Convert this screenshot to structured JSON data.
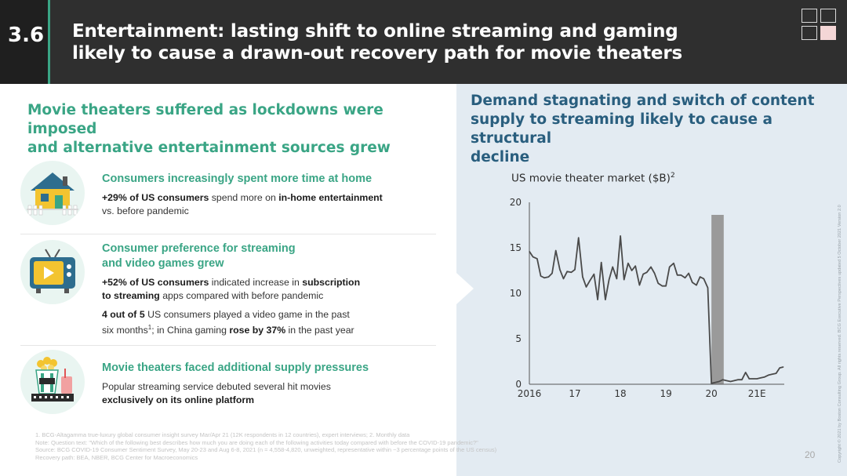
{
  "header": {
    "section_number": "3.6",
    "title_line1": "Entertainment: lasting shift to online streaming and gaming",
    "title_line2": "likely to cause a drawn-out recovery path for movie theaters"
  },
  "left": {
    "heading_line1": "Movie theaters suffered as lockdowns were imposed",
    "heading_line2": "and alternative entertainment sources grew",
    "items": [
      {
        "icon": "house-icon",
        "title_line1": "Consumers increasingly spent more time at home",
        "p1_a": "+29% of US consumers",
        "p1_b": " spend more on ",
        "p1_c": "in-home entertainment",
        "p1_d": "vs. before pandemic"
      },
      {
        "icon": "television-icon",
        "title_line1": "Consumer preference for streaming",
        "title_line2": "and video games grew",
        "p1_a": "+52% of US consumers",
        "p1_b": " indicated increase in ",
        "p1_c": "subscription",
        "p1_d": "to streaming",
        "p1_e": " apps compared with before pandemic",
        "p2_a": "4 out of 5",
        "p2_b": " US consumers played a video game in the past",
        "p2_c": "six months",
        "p2_sup": "1",
        "p2_d": "; in China gaming ",
        "p2_e": "rose by 37%",
        "p2_f": " in the past year"
      },
      {
        "icon": "popcorn-icon",
        "title_line1": "Movie theaters faced additional supply pressures",
        "p1_a": "Popular streaming service debuted several hit movies",
        "p1_b": "exclusively on its online platform"
      }
    ]
  },
  "right": {
    "heading_line1": "Demand stagnating and switch of content",
    "heading_line2": "supply to streaming likely to cause a structural",
    "heading_line3": "decline",
    "chart_title": "US movie theater market ($B)",
    "chart_title_sup": "2"
  },
  "chart_data": {
    "type": "line",
    "title": "US movie theater market ($B)",
    "xlabel": "",
    "ylabel": "",
    "ylim": [
      0,
      20
    ],
    "xlim": [
      2016,
      2021.6
    ],
    "y_ticks": [
      0,
      5,
      10,
      15,
      20
    ],
    "x_ticks": [
      {
        "value": 2016,
        "label": "2016"
      },
      {
        "value": 2017,
        "label": "17"
      },
      {
        "value": 2018,
        "label": "18"
      },
      {
        "value": 2019,
        "label": "19"
      },
      {
        "value": 2020,
        "label": "20"
      },
      {
        "value": 2021,
        "label": "21E"
      }
    ],
    "highlight_band": {
      "from": 2020.0,
      "to": 2020.27,
      "color": "#9a9a9a"
    },
    "grid": false,
    "line_color": "#4a4a4a",
    "series": [
      {
        "x": [
          2016.0,
          2016.08,
          2016.17,
          2016.25,
          2016.33,
          2016.42,
          2016.5,
          2016.58,
          2016.67,
          2016.75,
          2016.83,
          2016.92,
          2017.0,
          2017.08,
          2017.17,
          2017.25,
          2017.33,
          2017.42,
          2017.5,
          2017.58,
          2017.67,
          2017.75,
          2017.83,
          2017.92,
          2018.0,
          2018.08,
          2018.17,
          2018.25,
          2018.33,
          2018.42,
          2018.5,
          2018.58,
          2018.67,
          2018.75,
          2018.83,
          2018.92,
          2019.0,
          2019.08,
          2019.17,
          2019.25,
          2019.33,
          2019.42,
          2019.5,
          2019.58,
          2019.67,
          2019.75,
          2019.83,
          2019.92,
          2020.0,
          2020.08,
          2020.17,
          2020.25,
          2020.33,
          2020.42,
          2020.5,
          2020.58,
          2020.67,
          2020.75,
          2020.83,
          2020.92,
          2021.0,
          2021.08,
          2021.17,
          2021.25,
          2021.33,
          2021.42,
          2021.5,
          2021.58
        ],
        "values": [
          14.6,
          14.0,
          13.8,
          11.9,
          11.7,
          11.8,
          12.2,
          14.7,
          12.6,
          11.6,
          12.4,
          12.3,
          12.6,
          16.1,
          11.8,
          10.7,
          11.4,
          12.1,
          9.3,
          13.4,
          9.3,
          11.5,
          12.9,
          11.6,
          16.3,
          11.5,
          13.3,
          12.5,
          13.0,
          10.9,
          12.1,
          12.3,
          12.9,
          12.2,
          11.1,
          10.8,
          10.8,
          12.9,
          13.3,
          12.0,
          12.0,
          11.7,
          12.2,
          11.2,
          10.9,
          11.8,
          11.6,
          10.6,
          0.1,
          0.2,
          0.3,
          0.5,
          0.4,
          0.3,
          0.4,
          0.5,
          0.5,
          1.3,
          0.6,
          0.6,
          0.6,
          0.7,
          0.8,
          1.0,
          1.1,
          1.2,
          1.8,
          1.9
        ]
      }
    ]
  },
  "footnotes": {
    "line1": "1.     BCG-Altagamma true-luxury global consumer insight survey Mar/Apr 21 (12K respondents in 12 countries), expert interviews; 2. Monthly data",
    "line2": "Note: Question text: \"Which of the following best describes how much you are doing each of the following activities today compared with before the COVID-19 pandemic?\"",
    "line3": "Source: BCG COVID-19 Consumer Sentiment Survey, May 20-23 and Aug 6-8, 2021 (n = 4,558-4,820, unweighted, representative within ~3 percentage points of the US census)",
    "line4": "Recovery path: BEA, NBER, BCG Center for Macroeconomics"
  },
  "page_number": "20",
  "copyright": "Copyright © 2021 by Boston Consulting Group. All rights reserved. BCG Executive Perspectives updated 5 October 2021 Version 2.0"
}
